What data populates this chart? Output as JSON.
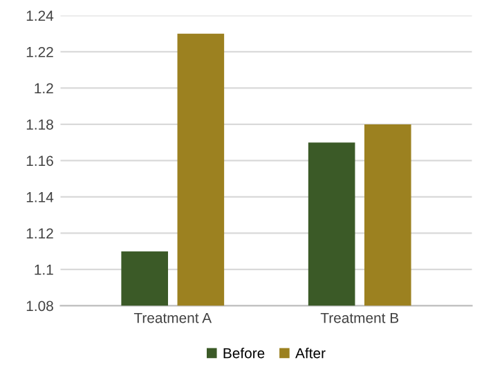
{
  "chart_data": {
    "type": "bar",
    "categories": [
      "Treatment A",
      "Treatment B"
    ],
    "series": [
      {
        "name": "Before",
        "color": "#3b5a27",
        "values": [
          1.11,
          1.17
        ]
      },
      {
        "name": "After",
        "color": "#9c8120",
        "values": [
          1.23,
          1.18
        ]
      }
    ],
    "ylim": [
      1.08,
      1.24
    ],
    "yticks": [
      1.08,
      1.1,
      1.12,
      1.14,
      1.16,
      1.18,
      1.2,
      1.22,
      1.24
    ],
    "grid": "y",
    "legend": "bottom"
  }
}
